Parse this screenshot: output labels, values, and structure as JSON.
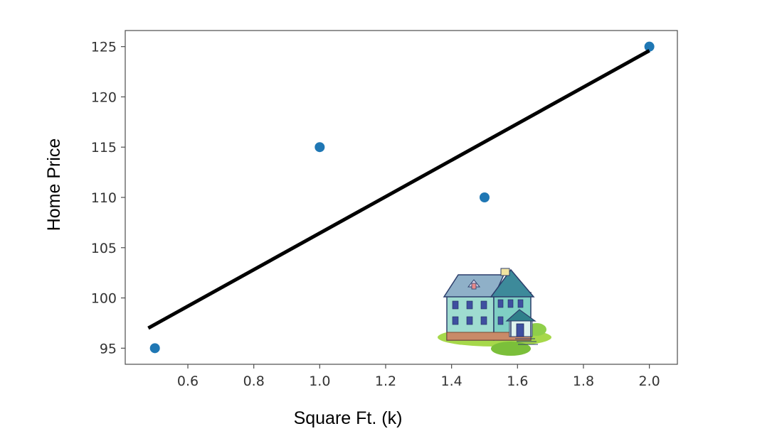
{
  "chart_data": {
    "type": "scatter",
    "xlabel": "Square Ft. (k)",
    "ylabel": "Home Price",
    "xlim": [
      0.41,
      2.085
    ],
    "ylim": [
      93.4,
      126.6
    ],
    "xticks": [
      0.6,
      0.8,
      1.0,
      1.2,
      1.4,
      1.6,
      1.8,
      2.0
    ],
    "xtick_labels": [
      "0.6",
      "0.8",
      "1.0",
      "1.2",
      "1.4",
      "1.6",
      "1.8",
      "2.0"
    ],
    "yticks": [
      95,
      100,
      105,
      110,
      115,
      120,
      125
    ],
    "ytick_labels": [
      "95",
      "100",
      "105",
      "110",
      "115",
      "120",
      "125"
    ],
    "grid": false,
    "series": [
      {
        "kind": "scatter",
        "x": [
          0.5,
          1.0,
          1.5,
          2.0
        ],
        "y": [
          95,
          115,
          110,
          125
        ]
      },
      {
        "kind": "line",
        "x": [
          0.48,
          2.0
        ],
        "y": [
          97.0,
          124.6
        ]
      }
    ],
    "colors": {
      "points": "#1f77b4",
      "fit_line": "#000000",
      "frame": "#4d4d4d"
    },
    "decoration": "house-illustration"
  }
}
